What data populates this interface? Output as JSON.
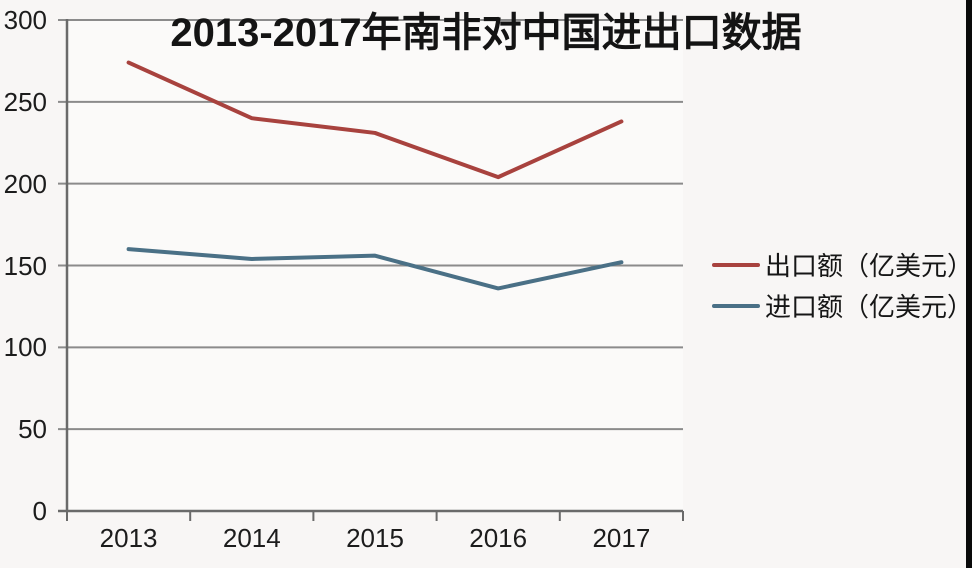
{
  "page": {
    "background_color": "#f8f6f5",
    "plot_background_color": "#fbfaf9",
    "edge_bar_color": "#0a0a0a"
  },
  "chart_data": {
    "type": "line",
    "title": "2013-2017年南非对中国进出口数据",
    "categories": [
      "2013",
      "2014",
      "2015",
      "2016",
      "2017"
    ],
    "series": [
      {
        "name": "出口额（亿美元）",
        "color": "#a8423e",
        "values": [
          274,
          240,
          231,
          204,
          238
        ]
      },
      {
        "name": "进口额（亿美元）",
        "color": "#4a7086",
        "values": [
          160,
          154,
          156,
          136,
          152
        ]
      }
    ],
    "xlabel": "",
    "ylabel": "",
    "ylim": [
      0,
      300
    ],
    "yticks": [
      0,
      50,
      100,
      150,
      200,
      250,
      300
    ],
    "grid": "horizontal",
    "legend_position": "right",
    "gridline_color": "#8b8b8b",
    "axis_color": "#6a6a6a",
    "tick_label_color": "#1c1c1c",
    "line_width": 4
  }
}
